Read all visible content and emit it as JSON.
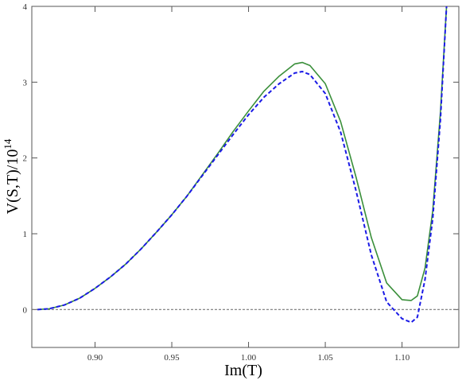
{
  "chart_data": {
    "type": "line",
    "x_label": "Im(T)",
    "y_label": {
      "base": "V(S,T)/10",
      "superscript": "14"
    },
    "x": [
      0.8625,
      0.87,
      0.88,
      0.89,
      0.9,
      0.91,
      0.92,
      0.93,
      0.94,
      0.95,
      0.96,
      0.97,
      0.98,
      0.99,
      1.0,
      1.01,
      1.02,
      1.03,
      1.035,
      1.04,
      1.05,
      1.06,
      1.07,
      1.08,
      1.09,
      1.1,
      1.106,
      1.11,
      1.115,
      1.12,
      1.125,
      1.129
    ],
    "series": [
      {
        "color": "#3a8f3a",
        "dash": false,
        "values": [
          0,
          0.01,
          0.06,
          0.15,
          0.28,
          0.43,
          0.6,
          0.8,
          1.02,
          1.25,
          1.5,
          1.78,
          2.06,
          2.35,
          2.62,
          2.88,
          3.08,
          3.24,
          3.26,
          3.22,
          2.98,
          2.48,
          1.75,
          0.95,
          0.35,
          0.13,
          0.12,
          0.18,
          0.55,
          1.3,
          2.6,
          4.0
        ]
      },
      {
        "color": "#1a1ae6",
        "dash": true,
        "values": [
          0,
          0.01,
          0.06,
          0.15,
          0.28,
          0.43,
          0.6,
          0.8,
          1.02,
          1.25,
          1.5,
          1.77,
          2.04,
          2.31,
          2.57,
          2.8,
          2.98,
          3.12,
          3.14,
          3.1,
          2.85,
          2.34,
          1.57,
          0.72,
          0.1,
          -0.12,
          -0.17,
          -0.1,
          0.4,
          1.2,
          2.5,
          4.0
        ]
      }
    ],
    "xlim": [
      0.8588,
      1.137
    ],
    "ylim": [
      -0.5,
      4
    ],
    "xticks": [
      {
        "value": 0.9,
        "label": "0.90"
      },
      {
        "value": 0.95,
        "label": "0.95"
      },
      {
        "value": 1.0,
        "label": "1.00"
      },
      {
        "value": 1.05,
        "label": "1.05"
      },
      {
        "value": 1.1,
        "label": "1.10"
      }
    ],
    "yticks": [
      0,
      1,
      2,
      3,
      4
    ],
    "reference_line": {
      "y": 0,
      "color": "#777777"
    }
  }
}
